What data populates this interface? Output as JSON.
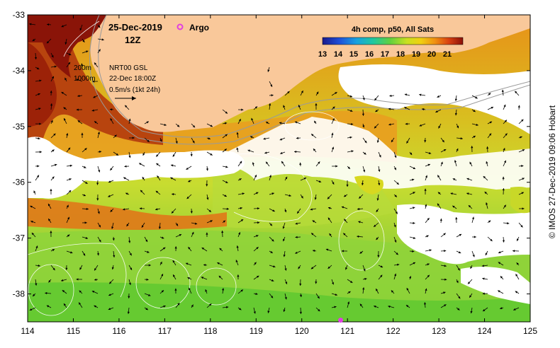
{
  "map": {
    "date": "25-Dec-2019",
    "hour": "12Z",
    "argo_label": "Argo",
    "isobath_labels": [
      "200m",
      "1000m"
    ],
    "current_source": "NRT00 GSL",
    "current_time": "22-Dec 18:00Z",
    "vector_scale": "0.5m/s (1kt 24h)",
    "credit": "© IMOS 27-Dec-2019 09:06 Hobart",
    "colorbar": {
      "title": "4h comp, p50, All Sats",
      "ticks": [
        "13",
        "14",
        "15",
        "16",
        "17",
        "18",
        "19",
        "20",
        "21"
      ],
      "min": 13,
      "max": 22
    },
    "lat_ticks": [
      "-33",
      "-34",
      "-35",
      "-36",
      "-37",
      "-38"
    ],
    "lon_ticks": [
      "114",
      "115",
      "116",
      "117",
      "118",
      "119",
      "120",
      "121",
      "122",
      "123",
      "124",
      "125"
    ],
    "extent": {
      "lon": [
        114,
        125
      ],
      "lat": [
        -38.5,
        -33
      ]
    },
    "argo_float": {
      "lon": 120.85,
      "lat": -38.47
    },
    "colors": {
      "land": "#f9c89a",
      "argo": "#e040e0",
      "cloud": "#ffffff"
    }
  }
}
